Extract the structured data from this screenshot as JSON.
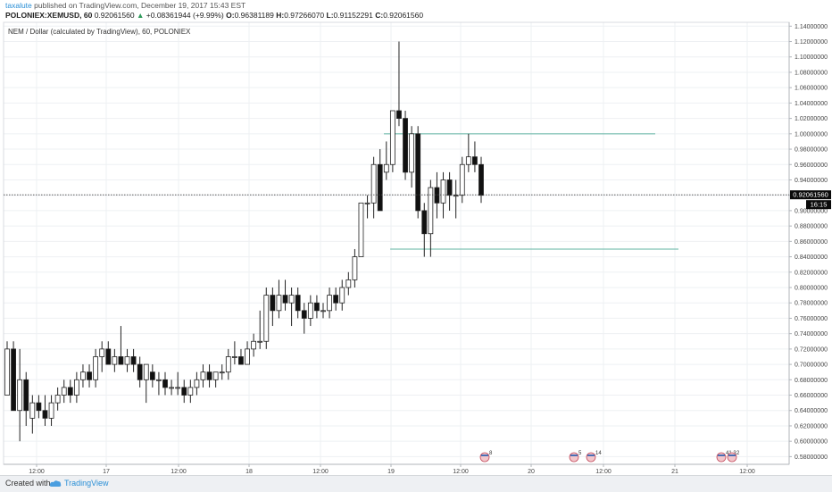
{
  "header": {
    "author": "taxalute",
    "published": " published on TradingView.com, December 19, 2017 15:43 EST",
    "symbol": "POLONIEX:XEMUSD, 60",
    "last": "0.92061560",
    "change": "+0.08361944 (+9.99%)",
    "o_label": "O:",
    "o": "0.96381189",
    "h_label": "H:",
    "h": "0.97266070",
    "l_label": "L:",
    "l": "0.91152291",
    "c_label": "C:",
    "c": "0.92061560"
  },
  "footer": {
    "created_with": "Created with",
    "brand": "TradingView"
  },
  "chart_data": {
    "type": "candlestick",
    "title": "NEM / Dollar (calculated by TradingView), 60, POLONIEX",
    "ylim": [
      0.57,
      1.145
    ],
    "y_ticks": [
      "1.14000000",
      "1.12000000",
      "1.10000000",
      "1.08000000",
      "1.06000000",
      "1.04000000",
      "1.02000000",
      "1.00000000",
      "0.98000000",
      "0.96000000",
      "0.94000000",
      "0.92000000",
      "0.90000000",
      "0.88000000",
      "0.86000000",
      "0.84000000",
      "0.82000000",
      "0.80000000",
      "0.78000000",
      "0.76000000",
      "0.74000000",
      "0.72000000",
      "0.70000000",
      "0.68000000",
      "0.66000000",
      "0.64000000",
      "0.62000000",
      "0.60000000",
      "0.58000000"
    ],
    "x_labels": [
      "12:00",
      "17",
      "12:00",
      "18",
      "12:00",
      "19",
      "12:00",
      "20",
      "12:00",
      "21",
      "12:00"
    ],
    "last_price_label": "0.92061560",
    "countdown_label": "16:15",
    "last_price": 0.9206156,
    "candles": [
      {
        "o": 0.66,
        "h": 0.73,
        "l": 0.66,
        "c": 0.72
      },
      {
        "o": 0.72,
        "h": 0.73,
        "l": 0.64,
        "c": 0.64
      },
      {
        "o": 0.64,
        "h": 0.72,
        "l": 0.6,
        "c": 0.68
      },
      {
        "o": 0.68,
        "h": 0.69,
        "l": 0.62,
        "c": 0.64
      },
      {
        "o": 0.63,
        "h": 0.66,
        "l": 0.61,
        "c": 0.65
      },
      {
        "o": 0.65,
        "h": 0.66,
        "l": 0.63,
        "c": 0.64
      },
      {
        "o": 0.64,
        "h": 0.66,
        "l": 0.62,
        "c": 0.63
      },
      {
        "o": 0.63,
        "h": 0.66,
        "l": 0.62,
        "c": 0.65
      },
      {
        "o": 0.65,
        "h": 0.67,
        "l": 0.64,
        "c": 0.66
      },
      {
        "o": 0.66,
        "h": 0.68,
        "l": 0.65,
        "c": 0.67
      },
      {
        "o": 0.67,
        "h": 0.68,
        "l": 0.65,
        "c": 0.66
      },
      {
        "o": 0.66,
        "h": 0.69,
        "l": 0.65,
        "c": 0.68
      },
      {
        "o": 0.68,
        "h": 0.7,
        "l": 0.67,
        "c": 0.69
      },
      {
        "o": 0.69,
        "h": 0.7,
        "l": 0.67,
        "c": 0.68
      },
      {
        "o": 0.68,
        "h": 0.72,
        "l": 0.67,
        "c": 0.71
      },
      {
        "o": 0.71,
        "h": 0.73,
        "l": 0.69,
        "c": 0.72
      },
      {
        "o": 0.72,
        "h": 0.73,
        "l": 0.7,
        "c": 0.7
      },
      {
        "o": 0.7,
        "h": 0.72,
        "l": 0.69,
        "c": 0.71
      },
      {
        "o": 0.71,
        "h": 0.75,
        "l": 0.7,
        "c": 0.7
      },
      {
        "o": 0.7,
        "h": 0.72,
        "l": 0.69,
        "c": 0.71
      },
      {
        "o": 0.71,
        "h": 0.72,
        "l": 0.69,
        "c": 0.7
      },
      {
        "o": 0.7,
        "h": 0.71,
        "l": 0.67,
        "c": 0.68
      },
      {
        "o": 0.68,
        "h": 0.7,
        "l": 0.65,
        "c": 0.7
      },
      {
        "o": 0.69,
        "h": 0.7,
        "l": 0.67,
        "c": 0.68
      },
      {
        "o": 0.68,
        "h": 0.69,
        "l": 0.66,
        "c": 0.68
      },
      {
        "o": 0.68,
        "h": 0.69,
        "l": 0.66,
        "c": 0.67
      },
      {
        "o": 0.67,
        "h": 0.68,
        "l": 0.66,
        "c": 0.67
      },
      {
        "o": 0.67,
        "h": 0.69,
        "l": 0.66,
        "c": 0.67
      },
      {
        "o": 0.67,
        "h": 0.68,
        "l": 0.65,
        "c": 0.66
      },
      {
        "o": 0.66,
        "h": 0.68,
        "l": 0.65,
        "c": 0.67
      },
      {
        "o": 0.67,
        "h": 0.69,
        "l": 0.66,
        "c": 0.68
      },
      {
        "o": 0.68,
        "h": 0.7,
        "l": 0.67,
        "c": 0.69
      },
      {
        "o": 0.69,
        "h": 0.7,
        "l": 0.67,
        "c": 0.68
      },
      {
        "o": 0.68,
        "h": 0.69,
        "l": 0.67,
        "c": 0.69
      },
      {
        "o": 0.69,
        "h": 0.7,
        "l": 0.68,
        "c": 0.69
      },
      {
        "o": 0.69,
        "h": 0.72,
        "l": 0.68,
        "c": 0.71
      },
      {
        "o": 0.71,
        "h": 0.73,
        "l": 0.7,
        "c": 0.71
      },
      {
        "o": 0.71,
        "h": 0.72,
        "l": 0.7,
        "c": 0.7
      },
      {
        "o": 0.7,
        "h": 0.73,
        "l": 0.7,
        "c": 0.72
      },
      {
        "o": 0.72,
        "h": 0.74,
        "l": 0.71,
        "c": 0.73
      },
      {
        "o": 0.73,
        "h": 0.77,
        "l": 0.72,
        "c": 0.73
      },
      {
        "o": 0.73,
        "h": 0.8,
        "l": 0.72,
        "c": 0.79
      },
      {
        "o": 0.79,
        "h": 0.8,
        "l": 0.75,
        "c": 0.77
      },
      {
        "o": 0.77,
        "h": 0.81,
        "l": 0.76,
        "c": 0.79
      },
      {
        "o": 0.79,
        "h": 0.81,
        "l": 0.77,
        "c": 0.78
      },
      {
        "o": 0.78,
        "h": 0.8,
        "l": 0.75,
        "c": 0.79
      },
      {
        "o": 0.79,
        "h": 0.8,
        "l": 0.76,
        "c": 0.77
      },
      {
        "o": 0.77,
        "h": 0.78,
        "l": 0.74,
        "c": 0.76
      },
      {
        "o": 0.76,
        "h": 0.79,
        "l": 0.75,
        "c": 0.78
      },
      {
        "o": 0.78,
        "h": 0.79,
        "l": 0.76,
        "c": 0.77
      },
      {
        "o": 0.77,
        "h": 0.78,
        "l": 0.76,
        "c": 0.77
      },
      {
        "o": 0.77,
        "h": 0.8,
        "l": 0.76,
        "c": 0.79
      },
      {
        "o": 0.79,
        "h": 0.8,
        "l": 0.77,
        "c": 0.78
      },
      {
        "o": 0.78,
        "h": 0.81,
        "l": 0.77,
        "c": 0.8
      },
      {
        "o": 0.8,
        "h": 0.82,
        "l": 0.79,
        "c": 0.81
      },
      {
        "o": 0.81,
        "h": 0.85,
        "l": 0.8,
        "c": 0.84
      },
      {
        "o": 0.84,
        "h": 0.91,
        "l": 0.84,
        "c": 0.91
      },
      {
        "o": 0.91,
        "h": 0.92,
        "l": 0.89,
        "c": 0.91
      },
      {
        "o": 0.91,
        "h": 0.97,
        "l": 0.89,
        "c": 0.96
      },
      {
        "o": 0.96,
        "h": 0.98,
        "l": 0.9,
        "c": 0.9
      },
      {
        "o": 0.95,
        "h": 0.99,
        "l": 0.94,
        "c": 0.96
      },
      {
        "o": 0.96,
        "h": 1.03,
        "l": 0.95,
        "c": 1.03
      },
      {
        "o": 1.03,
        "h": 1.12,
        "l": 1.01,
        "c": 1.02
      },
      {
        "o": 1.02,
        "h": 1.03,
        "l": 0.94,
        "c": 0.95
      },
      {
        "o": 0.95,
        "h": 1.01,
        "l": 0.93,
        "c": 1.0
      },
      {
        "o": 1.0,
        "h": 1.01,
        "l": 0.89,
        "c": 0.9
      },
      {
        "o": 0.9,
        "h": 0.91,
        "l": 0.84,
        "c": 0.87
      },
      {
        "o": 0.87,
        "h": 0.94,
        "l": 0.84,
        "c": 0.93
      },
      {
        "o": 0.93,
        "h": 0.95,
        "l": 0.89,
        "c": 0.91
      },
      {
        "o": 0.91,
        "h": 0.95,
        "l": 0.89,
        "c": 0.94
      },
      {
        "o": 0.94,
        "h": 0.95,
        "l": 0.9,
        "c": 0.92
      },
      {
        "o": 0.92,
        "h": 0.94,
        "l": 0.89,
        "c": 0.92
      },
      {
        "o": 0.92,
        "h": 0.97,
        "l": 0.91,
        "c": 0.96
      },
      {
        "o": 0.96,
        "h": 1.0,
        "l": 0.95,
        "c": 0.97
      },
      {
        "o": 0.97,
        "h": 0.99,
        "l": 0.95,
        "c": 0.96
      },
      {
        "o": 0.96,
        "h": 0.97,
        "l": 0.91,
        "c": 0.92
      }
    ],
    "levels": [
      {
        "y": 1.0,
        "from_candle": 63,
        "to_x": 734
      },
      {
        "y": 0.85,
        "from_candle": 64,
        "to_x": 760
      }
    ],
    "event_markers": [
      "8",
      "5",
      "14",
      "41,3",
      "2"
    ]
  }
}
